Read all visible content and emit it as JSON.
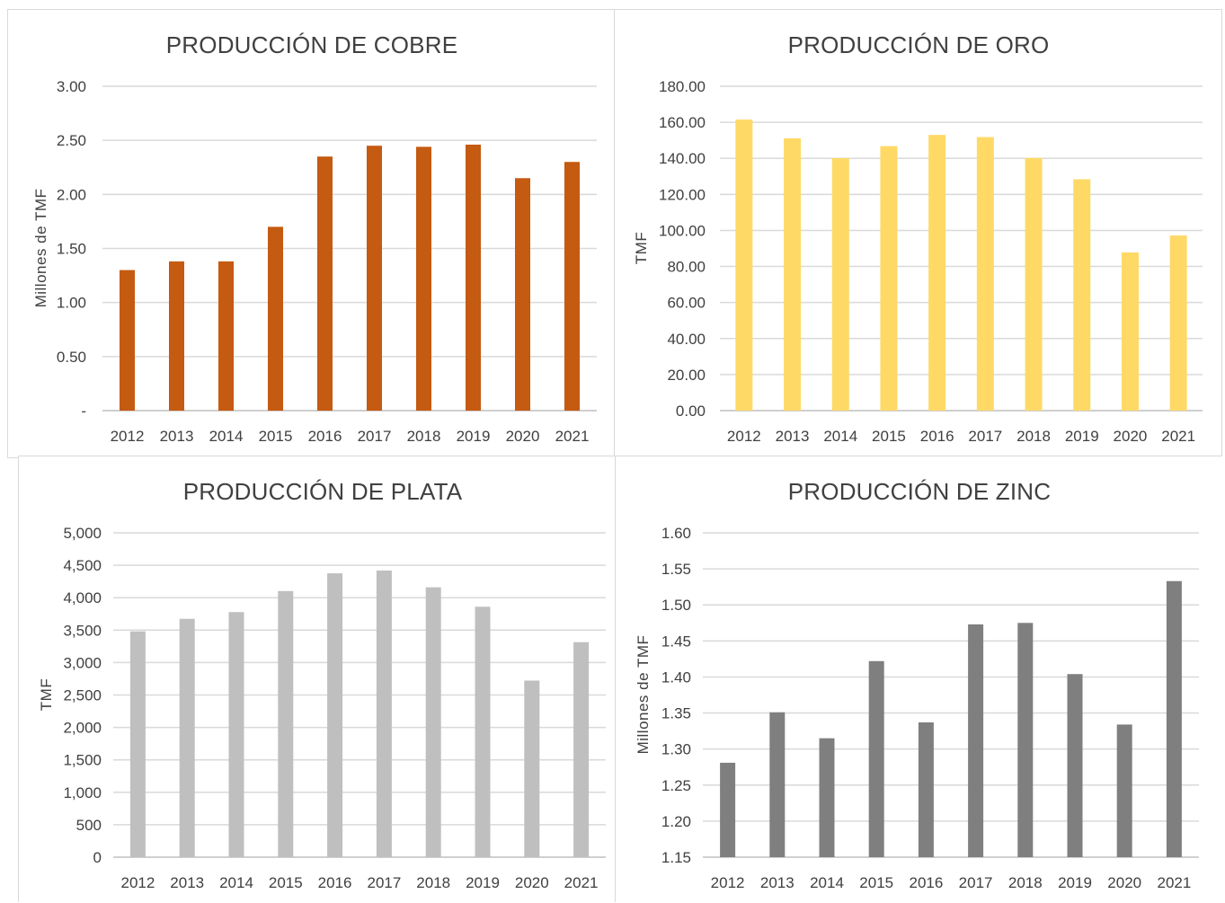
{
  "chart_data": [
    {
      "type": "bar",
      "title": "PRODUCCIÓN DE COBRE",
      "xlabel": "",
      "ylabel": "Millones de TMF",
      "categories": [
        "2012",
        "2013",
        "2014",
        "2015",
        "2016",
        "2017",
        "2018",
        "2019",
        "2020",
        "2021"
      ],
      "values": [
        1.3,
        1.38,
        1.38,
        1.7,
        2.35,
        2.45,
        2.44,
        2.46,
        2.15,
        2.3
      ],
      "ylim": [
        0,
        3
      ],
      "yticks": [
        "-",
        "0.50",
        "1.00",
        "1.50",
        "2.00",
        "2.50",
        "3.00"
      ],
      "color": "#c55a11",
      "grid": true
    },
    {
      "type": "bar",
      "title": "PRODUCCIÓN DE ORO",
      "xlabel": "",
      "ylabel": "TMF",
      "categories": [
        "2012",
        "2013",
        "2014",
        "2015",
        "2016",
        "2017",
        "2018",
        "2019",
        "2020",
        "2021"
      ],
      "values": [
        161.5,
        151.1,
        140.1,
        146.8,
        153.0,
        151.8,
        140.2,
        128.4,
        87.8,
        97.2
      ],
      "ylim": [
        0,
        180
      ],
      "yticks": [
        "0.00",
        "20.00",
        "40.00",
        "60.00",
        "80.00",
        "100.00",
        "120.00",
        "140.00",
        "160.00",
        "180.00"
      ],
      "color": "#ffd966",
      "grid": true
    },
    {
      "type": "bar",
      "title": "PRODUCCIÓN DE PLATA",
      "xlabel": "",
      "ylabel": "TMF",
      "categories": [
        "2012",
        "2013",
        "2014",
        "2015",
        "2016",
        "2017",
        "2018",
        "2019",
        "2020",
        "2021"
      ],
      "values": [
        3481,
        3674,
        3778,
        4102,
        4375,
        4418,
        4160,
        3860,
        2722,
        3315
      ],
      "ylim": [
        0,
        5000
      ],
      "yticks": [
        "0",
        "500",
        "1,000",
        "1,500",
        "2,000",
        "2,500",
        "3,000",
        "3,500",
        "4,000",
        "4,500",
        "5,000"
      ],
      "color": "#bfbfbf",
      "grid": true
    },
    {
      "type": "bar",
      "title": "PRODUCCIÓN DE ZINC",
      "xlabel": "",
      "ylabel": "Millones de TMF",
      "categories": [
        "2012",
        "2013",
        "2014",
        "2015",
        "2016",
        "2017",
        "2018",
        "2019",
        "2020",
        "2021"
      ],
      "values": [
        1.281,
        1.351,
        1.315,
        1.422,
        1.337,
        1.473,
        1.475,
        1.404,
        1.334,
        1.533
      ],
      "ylim": [
        1.15,
        1.6
      ],
      "yticks": [
        "1.15",
        "1.20",
        "1.25",
        "1.30",
        "1.35",
        "1.40",
        "1.45",
        "1.50",
        "1.55",
        "1.60"
      ],
      "color": "#7f7f7f",
      "grid": true
    }
  ]
}
